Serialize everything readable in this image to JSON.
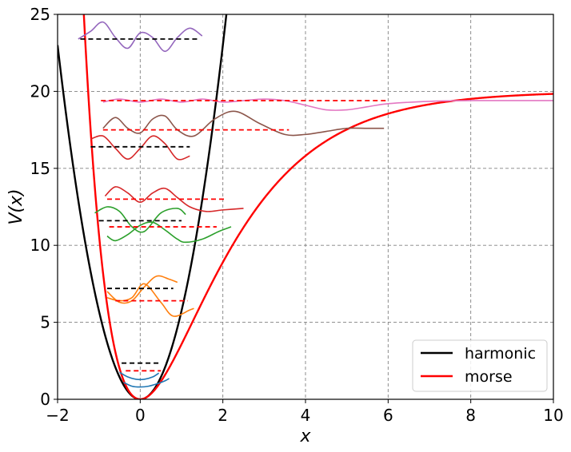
{
  "chart_data": {
    "type": "line",
    "title": "",
    "xlabel": "x",
    "ylabel": "V(x)",
    "xlim": [
      -2,
      10
    ],
    "ylim": [
      0,
      25
    ],
    "xticks": [
      "−2",
      "0",
      "2",
      "4",
      "6",
      "8",
      "10"
    ],
    "yticks": [
      "0",
      "5",
      "10",
      "15",
      "20",
      "25"
    ],
    "xtick_values": [
      -2,
      0,
      2,
      4,
      6,
      8,
      10
    ],
    "ytick_values": [
      0,
      5,
      10,
      15,
      20,
      25
    ],
    "grid": true,
    "legend": {
      "position": "lower-right",
      "entries": [
        "harmonic",
        "morse"
      ]
    },
    "potentials": [
      {
        "name": "harmonic",
        "color": "#000000",
        "kind": "harmonic",
        "k": 11.5
      },
      {
        "name": "morse",
        "color": "#ff0000",
        "kind": "morse",
        "D": 20,
        "a": 0.55
      }
    ],
    "harmonic_levels": [
      {
        "energy": 2.35,
        "x_range": [
          -0.45,
          0.45
        ]
      },
      {
        "energy": 7.2,
        "x_range": [
          -0.8,
          0.8
        ]
      },
      {
        "energy": 11.6,
        "x_range": [
          -1.0,
          1.0
        ]
      },
      {
        "energy": 16.4,
        "x_range": [
          -1.2,
          1.2
        ]
      },
      {
        "energy": 23.4,
        "x_range": [
          -1.45,
          1.45
        ]
      }
    ],
    "morse_levels": [
      {
        "energy": 1.85,
        "x_range": [
          -0.35,
          0.5
        ]
      },
      {
        "energy": 6.4,
        "x_range": [
          -0.6,
          1.15
        ]
      },
      {
        "energy": 11.2,
        "x_range": [
          -0.75,
          1.85
        ]
      },
      {
        "energy": 13.0,
        "x_range": [
          -0.8,
          2.1
        ]
      },
      {
        "energy": 17.5,
        "x_range": [
          -0.9,
          3.6
        ]
      },
      {
        "energy": 19.4,
        "x_range": [
          -0.95,
          6.0
        ]
      }
    ],
    "wavefunctions": [
      {
        "color": "#1f77b4",
        "segments": [
          {
            "x": [
              -0.5,
              -0.3,
              -0.1,
              0.1,
              0.3,
              0.45
            ],
            "y": [
              1.75,
              1.45,
              1.3,
              1.3,
              1.45,
              1.7
            ]
          },
          {
            "x": [
              -0.4,
              -0.2,
              0.0,
              0.2,
              0.4,
              0.6,
              0.7
            ],
            "y": [
              1.1,
              0.85,
              0.8,
              0.85,
              1.0,
              1.2,
              1.35
            ]
          }
        ]
      },
      {
        "color": "#ff7f0e",
        "segments": [
          {
            "x": [
              -0.8,
              -0.5,
              -0.2,
              0.1,
              0.4,
              0.7,
              0.9
            ],
            "y": [
              7.0,
              6.3,
              6.4,
              7.3,
              8.0,
              7.8,
              7.6
            ]
          },
          {
            "x": [
              -0.8,
              -0.5,
              -0.2,
              0.1,
              0.5,
              0.8,
              1.2,
              1.3
            ],
            "y": [
              6.6,
              6.4,
              6.6,
              7.5,
              6.3,
              5.4,
              5.8,
              5.9
            ]
          }
        ]
      },
      {
        "color": "#2ca02c",
        "segments": [
          {
            "x": [
              -1.1,
              -0.8,
              -0.5,
              -0.2,
              0.1,
              0.5,
              0.9,
              1.1
            ],
            "y": [
              12.1,
              12.5,
              12.2,
              11.2,
              10.9,
              12.1,
              12.4,
              12.0
            ]
          },
          {
            "x": [
              -0.8,
              -0.6,
              -0.3,
              0.0,
              0.3,
              0.6,
              0.9,
              1.1,
              1.5,
              1.9,
              2.2
            ],
            "y": [
              10.6,
              10.3,
              10.7,
              11.3,
              11.5,
              11.0,
              10.4,
              10.2,
              10.4,
              10.9,
              11.2
            ]
          }
        ]
      },
      {
        "color": "#d62728",
        "segments": [
          {
            "x": [
              -0.85,
              -0.6,
              -0.3,
              0.0,
              0.3,
              0.6,
              0.9,
              1.2,
              1.6,
              2.0,
              2.5
            ],
            "y": [
              13.2,
              13.8,
              13.4,
              12.8,
              13.4,
              13.7,
              13.1,
              12.5,
              12.2,
              12.3,
              12.4
            ]
          },
          {
            "x": [
              -1.2,
              -0.9,
              -0.6,
              -0.3,
              0.0,
              0.3,
              0.6,
              0.9,
              1.2
            ],
            "y": [
              16.9,
              17.1,
              16.3,
              15.6,
              16.3,
              17.1,
              16.6,
              15.6,
              15.8
            ]
          }
        ]
      },
      {
        "color": "#8c564b",
        "segments": [
          {
            "x": [
              -0.9,
              -0.6,
              -0.3,
              0.0,
              0.3,
              0.6,
              0.9,
              1.3,
              1.8,
              2.3,
              2.9,
              3.5,
              4.0,
              4.5,
              5.0,
              5.5,
              5.9
            ],
            "y": [
              17.6,
              18.3,
              17.6,
              17.3,
              18.2,
              18.4,
              17.5,
              17.1,
              18.2,
              18.7,
              17.9,
              17.2,
              17.2,
              17.4,
              17.6,
              17.6,
              17.6
            ]
          }
        ]
      },
      {
        "color": "#9467bd",
        "segments": [
          {
            "x": [
              -1.5,
              -1.2,
              -0.9,
              -0.6,
              -0.3,
              0.0,
              0.3,
              0.6,
              0.9,
              1.2,
              1.5
            ],
            "y": [
              23.4,
              23.9,
              24.5,
              23.5,
              22.8,
              23.8,
              23.5,
              22.6,
              23.5,
              24.1,
              23.6
            ]
          }
        ]
      },
      {
        "color": "#e377c2",
        "segments": [
          {
            "x": [
              -0.9,
              -0.5,
              0.0,
              0.5,
              1.0,
              1.5,
              2.0,
              2.5,
              3.0,
              3.5,
              4.0,
              4.5,
              5.0,
              5.5,
              6.0,
              7.0,
              8.0,
              9.0,
              10.0
            ],
            "y": [
              19.3,
              19.5,
              19.3,
              19.5,
              19.3,
              19.5,
              19.3,
              19.4,
              19.5,
              19.4,
              19.1,
              18.8,
              18.8,
              19.0,
              19.2,
              19.35,
              19.4,
              19.4,
              19.4
            ]
          }
        ]
      }
    ]
  }
}
